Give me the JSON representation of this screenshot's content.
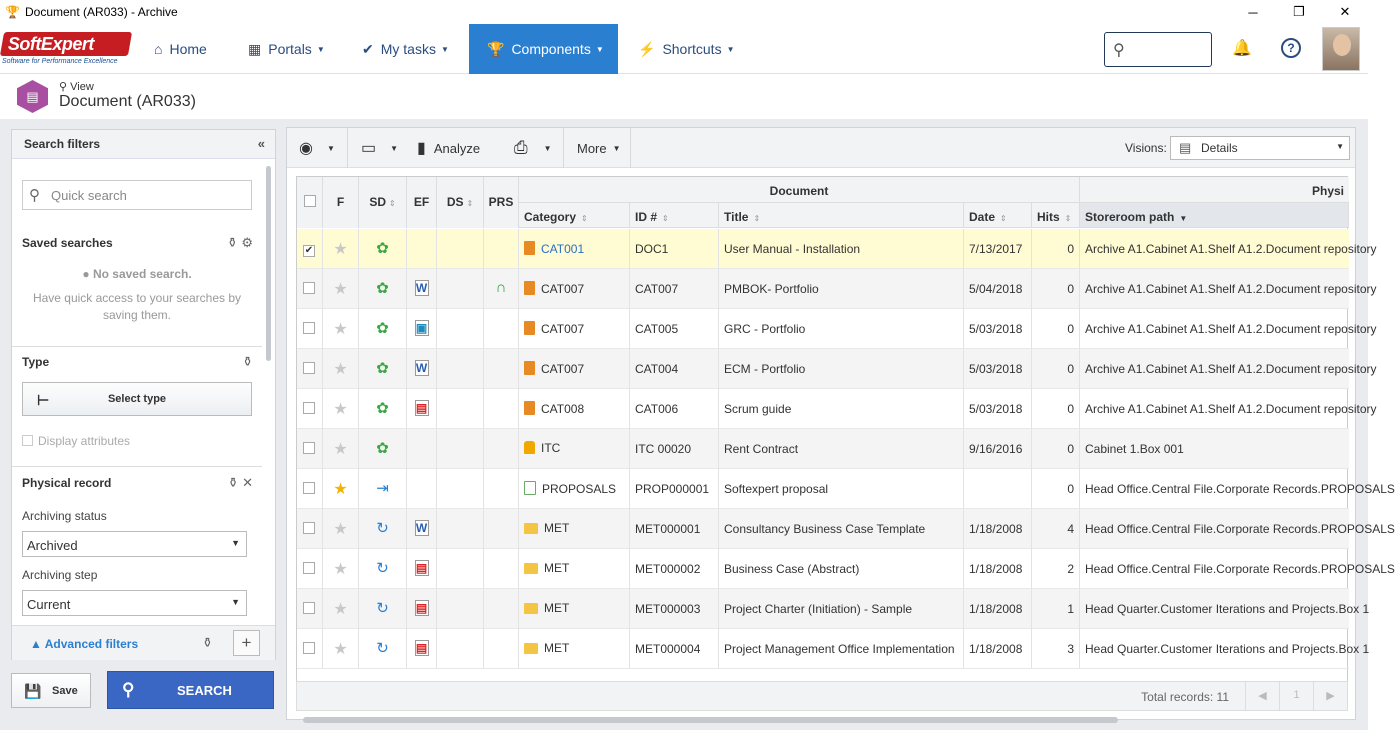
{
  "window": {
    "title": "Document (AR033) - Archive",
    "icon": "trophy-icon",
    "buttons": [
      "─",
      "❐",
      "✕"
    ]
  },
  "nav": {
    "logo_text": "SoftExpert",
    "logo_tagline": "Software for Performance Excellence",
    "items": [
      {
        "label": "Home",
        "icon": "home-icon"
      },
      {
        "label": "Portals",
        "icon": "portals-icon"
      },
      {
        "label": "My tasks",
        "icon": "check-icon"
      },
      {
        "label": "Components",
        "icon": "trophy-icon"
      },
      {
        "label": "Shortcuts",
        "icon": "bolt-icon"
      }
    ],
    "active_color": "#2b7fd1"
  },
  "page": {
    "view_label": "View",
    "title": "Document (AR033)",
    "icon_color": "#a84fa2"
  },
  "left_panel": {
    "header": "Search filters",
    "quick_search_placeholder": "Quick search",
    "saved_searches": {
      "title": "Saved searches",
      "empty": "No saved search.",
      "hint": "Have quick access to your searches by saving them."
    },
    "type": {
      "title": "Type",
      "button": "Select type",
      "display_attributes": "Display attributes"
    },
    "physical_record": {
      "title": "Physical record",
      "archiving_status_label": "Archiving status",
      "archiving_status_value": "Archived",
      "archiving_step_label": "Archiving step",
      "archiving_step_value": "Current"
    },
    "advanced_filters": "Advanced filters",
    "save_button": "Save",
    "search_button": "SEARCH"
  },
  "toolbar": {
    "analyze": "Analyze",
    "more": "More",
    "visions_label": "Visions:",
    "visions_value": "Details"
  },
  "grid": {
    "group_headers": {
      "document": "Document",
      "physical": "Physi"
    },
    "columns": {
      "f": "F",
      "sd": "SD",
      "ef": "EF",
      "ds": "DS",
      "prs": "PRS",
      "category": "Category",
      "id": "ID #",
      "title": "Title",
      "date": "Date",
      "hits": "Hits",
      "storeroom": "Storeroom path"
    },
    "rows": [
      {
        "checked": true,
        "star": false,
        "sd": "green",
        "ef": "",
        "prs": false,
        "cat_icon": "book",
        "category": "CAT001",
        "cat_link": true,
        "id": "DOC1",
        "title": "User Manual - Installation",
        "date": "7/13/2017",
        "hits": "0",
        "storeroom": "Archive A1.Cabinet A1.Shelf A1.2.Document repository"
      },
      {
        "checked": false,
        "star": false,
        "sd": "green",
        "ef": "word",
        "prs": true,
        "cat_icon": "book",
        "category": "CAT007",
        "cat_link": false,
        "id": "CAT007",
        "title": "PMBOK- Portfolio",
        "date": "5/04/2018",
        "hits": "0",
        "storeroom": "Archive A1.Cabinet A1.Shelf A1.2.Document repository"
      },
      {
        "checked": false,
        "star": false,
        "sd": "green",
        "ef": "img",
        "prs": false,
        "cat_icon": "book",
        "category": "CAT007",
        "cat_link": false,
        "id": "CAT005",
        "title": "GRC - Portfolio",
        "date": "5/03/2018",
        "hits": "0",
        "storeroom": "Archive A1.Cabinet A1.Shelf A1.2.Document repository"
      },
      {
        "checked": false,
        "star": false,
        "sd": "green",
        "ef": "word",
        "prs": false,
        "cat_icon": "book",
        "category": "CAT007",
        "cat_link": false,
        "id": "CAT004",
        "title": "ECM - Portfolio",
        "date": "5/03/2018",
        "hits": "0",
        "storeroom": "Archive A1.Cabinet A1.Shelf A1.2.Document repository"
      },
      {
        "checked": false,
        "star": false,
        "sd": "green",
        "ef": "pdf",
        "prs": false,
        "cat_icon": "book",
        "category": "CAT008",
        "cat_link": false,
        "id": "CAT006",
        "title": "Scrum guide",
        "date": "5/03/2018",
        "hits": "0",
        "storeroom": "Archive A1.Cabinet A1.Shelf A1.2.Document repository"
      },
      {
        "checked": false,
        "star": false,
        "sd": "green",
        "ef": "",
        "prs": false,
        "cat_icon": "lock",
        "category": "ITC",
        "cat_link": false,
        "id": "ITC 00020",
        "title": "Rent Contract",
        "date": "9/16/2016",
        "hits": "0",
        "storeroom": "Cabinet 1.Box 001"
      },
      {
        "checked": false,
        "star": true,
        "sd": "export",
        "ef": "",
        "prs": false,
        "cat_icon": "prop",
        "category": "PROPOSALS",
        "cat_link": false,
        "id": "PROP000001",
        "title": "Softexpert proposal",
        "date": "",
        "hits": "0",
        "storeroom": "Head Office.Central File.Corporate Records.PROPOSALS"
      },
      {
        "checked": false,
        "star": false,
        "sd": "blue",
        "ef": "word",
        "prs": false,
        "cat_icon": "folder",
        "category": "MET",
        "cat_link": false,
        "id": "MET000001",
        "title": "Consultancy Business Case Template",
        "date": "1/18/2008",
        "hits": "4",
        "storeroom": "Head Office.Central File.Corporate Records.PROPOSALS"
      },
      {
        "checked": false,
        "star": false,
        "sd": "blue",
        "ef": "pdf",
        "prs": false,
        "cat_icon": "folder",
        "category": "MET",
        "cat_link": false,
        "id": "MET000002",
        "title": "Business Case (Abstract)",
        "date": "1/18/2008",
        "hits": "2",
        "storeroom": "Head Office.Central File.Corporate Records.PROPOSALS"
      },
      {
        "checked": false,
        "star": false,
        "sd": "blue",
        "ef": "pdf",
        "prs": false,
        "cat_icon": "folder",
        "category": "MET",
        "cat_link": false,
        "id": "MET000003",
        "title": "Project Charter (Initiation) - Sample",
        "date": "1/18/2008",
        "hits": "1",
        "storeroom": "Head Quarter.Customer Iterations and Projects.Box 1"
      },
      {
        "checked": false,
        "star": false,
        "sd": "blue",
        "ef": "pdf",
        "prs": false,
        "cat_icon": "folder",
        "category": "MET",
        "cat_link": false,
        "id": "MET000004",
        "title": "Project Management Office Implementation",
        "date": "1/18/2008",
        "hits": "3",
        "storeroom": "Head Quarter.Customer Iterations and Projects.Box 1"
      }
    ],
    "total": "Total records: 11",
    "page": "1"
  }
}
